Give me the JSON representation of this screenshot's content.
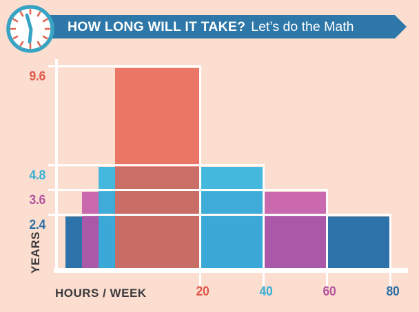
{
  "background_color": "#fbded0",
  "header": {
    "clock_icon": "clock-icon",
    "banner_color": "#2d77a9",
    "text_color": "#ffffff",
    "title_bold": "HOW LONG WILL IT TAKE?",
    "title_regular": "Let’s do the Math",
    "clock_ring_color": "#39a3c3",
    "clock_tick_color": "#e0634f"
  },
  "chart_data": {
    "type": "bar",
    "title": "HOW LONG WILL IT TAKE? Let’s do the Math",
    "xlabel": "HOURS / WEEK",
    "ylabel": "YEARS",
    "xlim": [
      0,
      80
    ],
    "ylim": [
      0,
      10
    ],
    "grid": true,
    "legend": false,
    "bar_style": "overlapping translucent bars anchored near the y-axis; each bar's right edge sits at its hours-per-week tick; tallest bar drawn in front",
    "gridline_color": "#ffffff",
    "axis_color": "#ffffff",
    "axis_text_color": "#3b393c",
    "points": [
      {
        "hours_per_week": 20,
        "years": 9.6,
        "x_label": "20",
        "y_label": "9.6",
        "fill": "rgba(232,95,77,0.82)",
        "label_color": "#e25647"
      },
      {
        "hours_per_week": 40,
        "years": 4.8,
        "x_label": "40",
        "y_label": "4.8",
        "fill": "rgba(42,180,222,0.88)",
        "label_color": "#3aaed6"
      },
      {
        "hours_per_week": 60,
        "years": 3.6,
        "x_label": "60",
        "y_label": "3.6",
        "fill": "rgba(193,85,168,0.85)",
        "label_color": "#b4549e"
      },
      {
        "hours_per_week": 80,
        "years": 2.4,
        "x_label": "80",
        "y_label": "2.4",
        "fill": "#2d72a8",
        "label_color": "#2d6fa6"
      }
    ]
  }
}
